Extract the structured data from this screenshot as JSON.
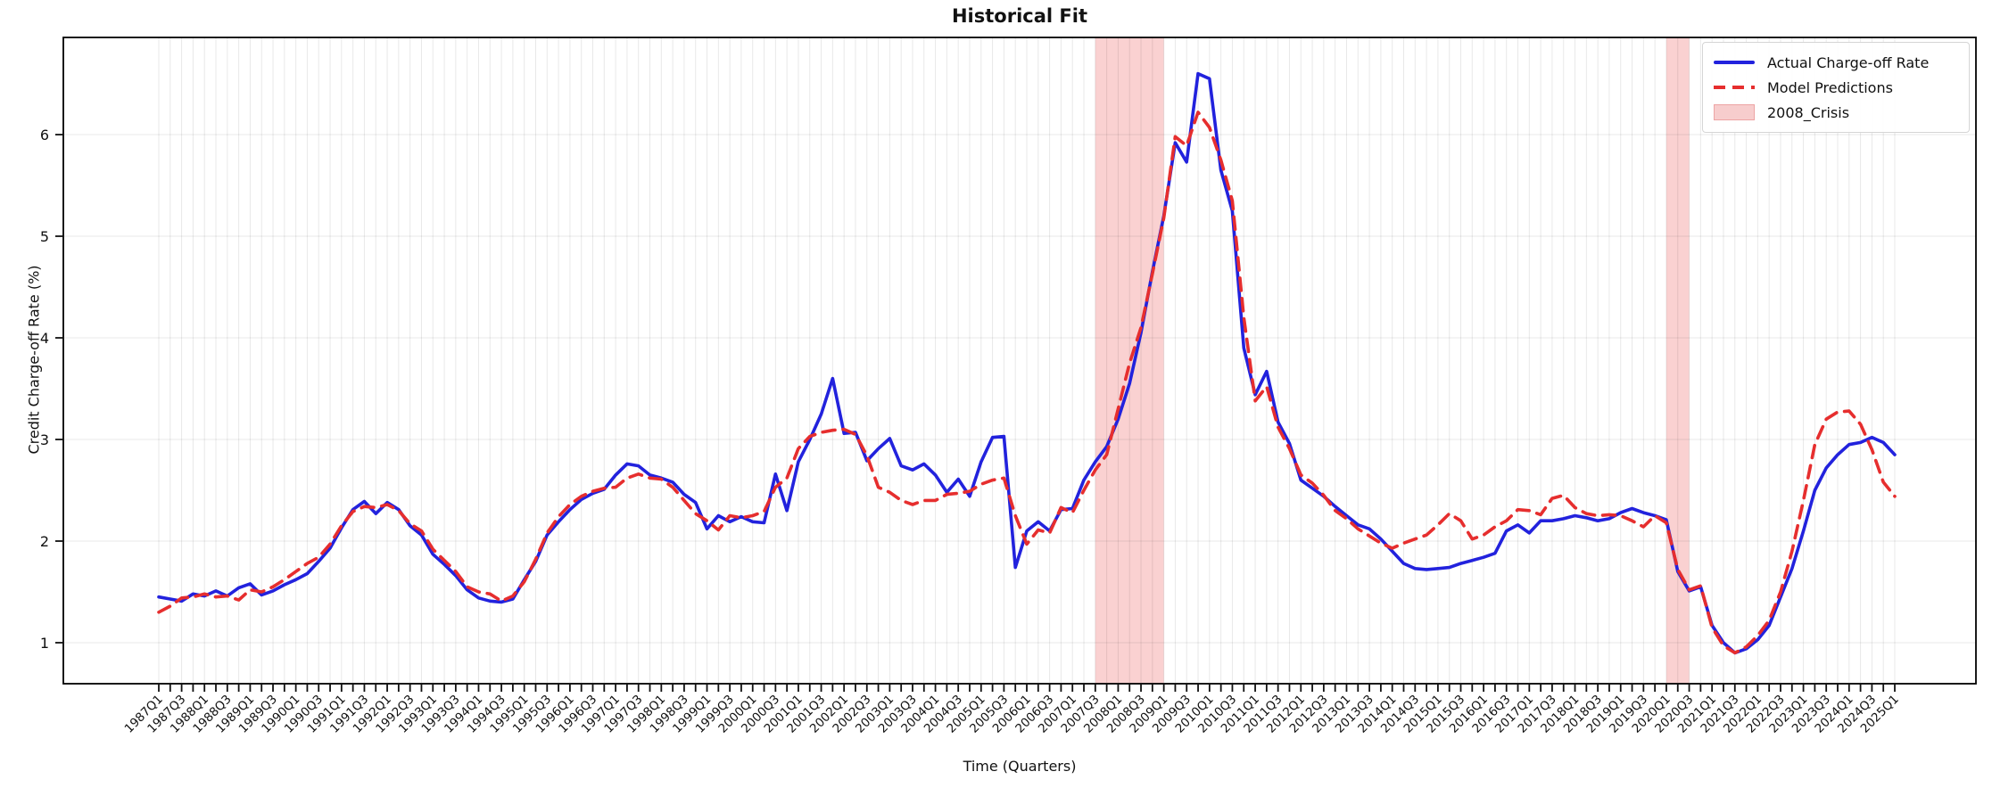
{
  "chart": {
    "title": "Historical Fit",
    "xlabel": "Time (Quarters)",
    "ylabel": "Credit Charge-off Rate (%)"
  },
  "legend": {
    "items": [
      {
        "label": "Actual Charge-off Rate",
        "type": "solid-line",
        "color": "#2222dd"
      },
      {
        "label": "Model Predictions",
        "type": "dashed-line",
        "color": "#e62e2e"
      },
      {
        "label": "2008_Crisis",
        "type": "patch",
        "color": "#f7cdcd",
        "border": "#eda4a4"
      }
    ]
  },
  "chart_data": {
    "type": "line",
    "title": "Historical Fit",
    "xlabel": "Time (Quarters)",
    "ylabel": "Credit Charge-off Rate (%)",
    "grid": true,
    "legend_position": "upper right",
    "ylim": [
      0.6,
      6.96
    ],
    "yticks": [
      1,
      2,
      3,
      4,
      5,
      6
    ],
    "xtick_label_step": 2,
    "x": [
      "1987Q1",
      "1987Q2",
      "1987Q3",
      "1987Q4",
      "1988Q1",
      "1988Q2",
      "1988Q3",
      "1988Q4",
      "1989Q1",
      "1989Q2",
      "1989Q3",
      "1989Q4",
      "1990Q1",
      "1990Q2",
      "1990Q3",
      "1990Q4",
      "1991Q1",
      "1991Q2",
      "1991Q3",
      "1991Q4",
      "1992Q1",
      "1992Q2",
      "1992Q3",
      "1992Q4",
      "1993Q1",
      "1993Q2",
      "1993Q3",
      "1993Q4",
      "1994Q1",
      "1994Q2",
      "1994Q3",
      "1994Q4",
      "1995Q1",
      "1995Q2",
      "1995Q3",
      "1995Q4",
      "1996Q1",
      "1996Q2",
      "1996Q3",
      "1996Q4",
      "1997Q1",
      "1997Q2",
      "1997Q3",
      "1997Q4",
      "1998Q1",
      "1998Q2",
      "1998Q3",
      "1998Q4",
      "1999Q1",
      "1999Q2",
      "1999Q3",
      "1999Q4",
      "2000Q1",
      "2000Q2",
      "2000Q3",
      "2000Q4",
      "2001Q1",
      "2001Q2",
      "2001Q3",
      "2001Q4",
      "2002Q1",
      "2002Q2",
      "2002Q3",
      "2002Q4",
      "2003Q1",
      "2003Q2",
      "2003Q3",
      "2003Q4",
      "2004Q1",
      "2004Q2",
      "2004Q3",
      "2004Q4",
      "2005Q1",
      "2005Q2",
      "2005Q3",
      "2005Q4",
      "2006Q1",
      "2006Q2",
      "2006Q3",
      "2006Q4",
      "2007Q1",
      "2007Q2",
      "2007Q3",
      "2007Q4",
      "2008Q1",
      "2008Q2",
      "2008Q3",
      "2008Q4",
      "2009Q1",
      "2009Q2",
      "2009Q3",
      "2009Q4",
      "2010Q1",
      "2010Q2",
      "2010Q3",
      "2010Q4",
      "2011Q1",
      "2011Q2",
      "2011Q3",
      "2011Q4",
      "2012Q1",
      "2012Q2",
      "2012Q3",
      "2012Q4",
      "2013Q1",
      "2013Q2",
      "2013Q3",
      "2013Q4",
      "2014Q1",
      "2014Q2",
      "2014Q3",
      "2014Q4",
      "2015Q1",
      "2015Q2",
      "2015Q3",
      "2015Q4",
      "2016Q1",
      "2016Q2",
      "2016Q3",
      "2016Q4",
      "2017Q1",
      "2017Q2",
      "2017Q3",
      "2017Q4",
      "2018Q1",
      "2018Q2",
      "2018Q3",
      "2018Q4",
      "2019Q1",
      "2019Q2",
      "2019Q3",
      "2019Q4",
      "2020Q1",
      "2020Q2",
      "2020Q3",
      "2020Q4",
      "2021Q1",
      "2021Q2",
      "2021Q3",
      "2021Q4",
      "2022Q1",
      "2022Q2",
      "2022Q3",
      "2022Q4",
      "2023Q1",
      "2023Q2",
      "2023Q3",
      "2023Q4",
      "2024Q1",
      "2024Q2",
      "2024Q3",
      "2024Q4",
      "2025Q1"
    ],
    "series": [
      {
        "name": "Actual Charge-off Rate",
        "style": "solid",
        "color": "#2222dd",
        "values": [
          1.45,
          1.43,
          1.41,
          1.48,
          1.46,
          1.51,
          1.46,
          1.54,
          1.58,
          1.47,
          1.51,
          1.57,
          1.62,
          1.68,
          1.8,
          1.93,
          2.13,
          2.31,
          2.39,
          2.27,
          2.38,
          2.31,
          2.15,
          2.06,
          1.87,
          1.77,
          1.66,
          1.52,
          1.44,
          1.41,
          1.4,
          1.43,
          1.62,
          1.8,
          2.06,
          2.19,
          2.31,
          2.41,
          2.47,
          2.51,
          2.65,
          2.76,
          2.74,
          2.65,
          2.62,
          2.58,
          2.46,
          2.38,
          2.12,
          2.25,
          2.19,
          2.24,
          2.19,
          2.18,
          2.66,
          2.3,
          2.78,
          3.0,
          3.25,
          3.6,
          3.06,
          3.07,
          2.79,
          2.91,
          3.01,
          2.74,
          2.7,
          2.76,
          2.65,
          2.48,
          2.61,
          2.44,
          2.78,
          3.02,
          3.03,
          1.74,
          2.1,
          2.19,
          2.1,
          2.31,
          2.32,
          2.6,
          2.78,
          2.93,
          3.2,
          3.55,
          4.05,
          4.65,
          5.2,
          5.92,
          5.73,
          6.6,
          6.55,
          5.65,
          5.25,
          3.9,
          3.44,
          3.67,
          3.17,
          2.96,
          2.6,
          2.52,
          2.44,
          2.34,
          2.25,
          2.16,
          2.12,
          2.02,
          1.9,
          1.78,
          1.73,
          1.72,
          1.73,
          1.74,
          1.78,
          1.81,
          1.84,
          1.88,
          2.1,
          2.16,
          2.08,
          2.2,
          2.2,
          2.22,
          2.25,
          2.23,
          2.2,
          2.22,
          2.28,
          2.32,
          2.28,
          2.25,
          2.21,
          1.7,
          1.51,
          1.55,
          1.17,
          1.0,
          0.9,
          0.94,
          1.03,
          1.17,
          1.45,
          1.73,
          2.1,
          2.5,
          2.72,
          2.85,
          2.95,
          2.97,
          3.02,
          2.97,
          2.85
        ]
      },
      {
        "name": "Model Predictions",
        "style": "dashed",
        "color": "#e62e2e",
        "values": [
          1.3,
          1.36,
          1.44,
          1.45,
          1.48,
          1.45,
          1.46,
          1.42,
          1.52,
          1.5,
          1.55,
          1.62,
          1.7,
          1.78,
          1.84,
          1.97,
          2.15,
          2.29,
          2.34,
          2.33,
          2.36,
          2.3,
          2.17,
          2.1,
          1.92,
          1.81,
          1.7,
          1.55,
          1.5,
          1.48,
          1.41,
          1.46,
          1.6,
          1.82,
          2.08,
          2.24,
          2.36,
          2.44,
          2.49,
          2.52,
          2.53,
          2.62,
          2.66,
          2.62,
          2.61,
          2.53,
          2.4,
          2.27,
          2.2,
          2.11,
          2.25,
          2.23,
          2.25,
          2.29,
          2.53,
          2.62,
          2.91,
          3.03,
          3.07,
          3.09,
          3.1,
          3.05,
          2.84,
          2.53,
          2.48,
          2.4,
          2.36,
          2.4,
          2.4,
          2.46,
          2.47,
          2.49,
          2.56,
          2.6,
          2.62,
          2.25,
          1.97,
          2.11,
          2.08,
          2.33,
          2.28,
          2.5,
          2.7,
          2.85,
          3.3,
          3.75,
          4.1,
          4.63,
          5.18,
          5.98,
          5.89,
          6.22,
          6.07,
          5.75,
          5.35,
          4.2,
          3.38,
          3.52,
          3.12,
          2.91,
          2.65,
          2.57,
          2.45,
          2.3,
          2.22,
          2.12,
          2.05,
          1.98,
          1.93,
          1.98,
          2.02,
          2.06,
          2.16,
          2.27,
          2.2,
          2.02,
          2.06,
          2.14,
          2.2,
          2.31,
          2.3,
          2.26,
          2.42,
          2.45,
          2.33,
          2.27,
          2.25,
          2.26,
          2.25,
          2.2,
          2.14,
          2.25,
          2.18,
          1.72,
          1.52,
          1.56,
          1.15,
          0.97,
          0.9,
          0.96,
          1.07,
          1.22,
          1.5,
          1.9,
          2.4,
          2.95,
          3.2,
          3.27,
          3.28,
          3.15,
          2.9,
          2.58,
          2.44
        ]
      }
    ],
    "shaded_regions": [
      {
        "label": "2008_Crisis",
        "from": "2007Q3",
        "to": "2009Q1",
        "color": "rgba(236,88,88,0.28)"
      },
      {
        "label": "2008_Crisis",
        "from": "2020Q1",
        "to": "2020Q3",
        "color": "rgba(236,88,88,0.28)"
      }
    ]
  }
}
